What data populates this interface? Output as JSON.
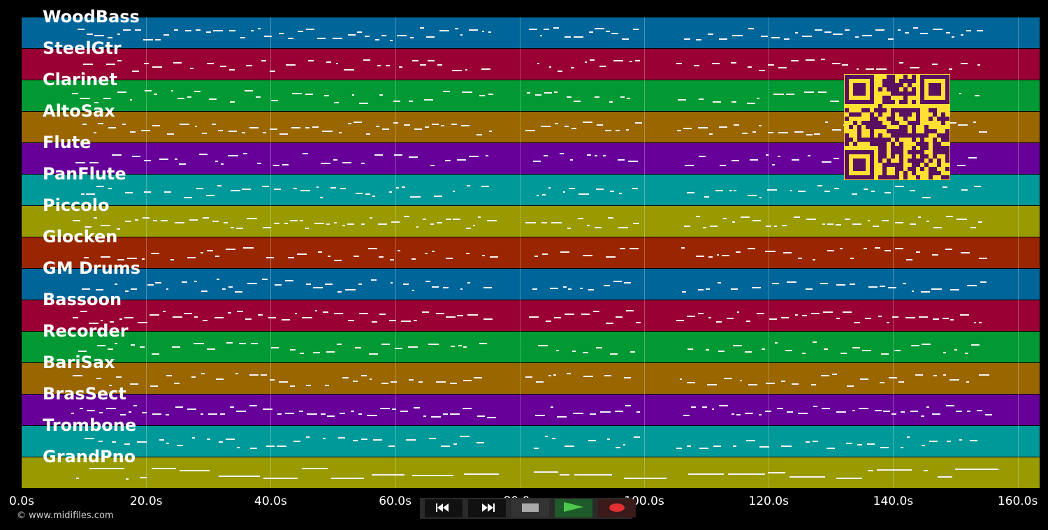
{
  "tracks": [
    {
      "name": "WoodBass",
      "color": "#006699"
    },
    {
      "name": "SteelGtr",
      "color": "#990033"
    },
    {
      "name": "Clarinet",
      "color": "#009933"
    },
    {
      "name": "AltoSax",
      "color": "#996600"
    },
    {
      "name": "Flute",
      "color": "#660099"
    },
    {
      "name": "PanFlute",
      "color": "#009999"
    },
    {
      "name": "Piccolo",
      "color": "#999900"
    },
    {
      "name": "Glocken",
      "color": "#992600"
    },
    {
      "name": "GM Drums",
      "color": "#006699"
    },
    {
      "name": "Bassoon",
      "color": "#990033"
    },
    {
      "name": "Recorder",
      "color": "#009933"
    },
    {
      "name": "BariSax",
      "color": "#996600"
    },
    {
      "name": "BrasSect",
      "color": "#660099"
    },
    {
      "name": "Trombone",
      "color": "#009999"
    },
    {
      "name": "GrandPno",
      "color": "#999900"
    }
  ],
  "timeline": {
    "ticks": [
      "0.0s",
      "20.0s",
      "40.0s",
      "60.0s",
      "80.0s",
      "100.0s",
      "120.0s",
      "140.0s",
      "160.0s"
    ],
    "max_seconds": 160
  },
  "watermark": "© www.midifiles.com",
  "controls": [
    {
      "name": "rewind-button",
      "icon": "rewind-icon",
      "bg": "#111111"
    },
    {
      "name": "fast-forward-button",
      "icon": "fast-forward-icon",
      "bg": "#111111"
    },
    {
      "name": "stop-button",
      "icon": "stop-icon",
      "bg": "#333333"
    },
    {
      "name": "play-button",
      "icon": "play-icon",
      "bg": "#1f5a2a"
    },
    {
      "name": "record-button",
      "icon": "record-icon",
      "bg": "#3a1a1a"
    }
  ],
  "colors": {
    "background": "#000000",
    "note": "#f4f4f4",
    "qr_background": "#ffe033",
    "qr_modules": "#5a1060",
    "play": "#4cc84c",
    "record": "#e03030"
  }
}
